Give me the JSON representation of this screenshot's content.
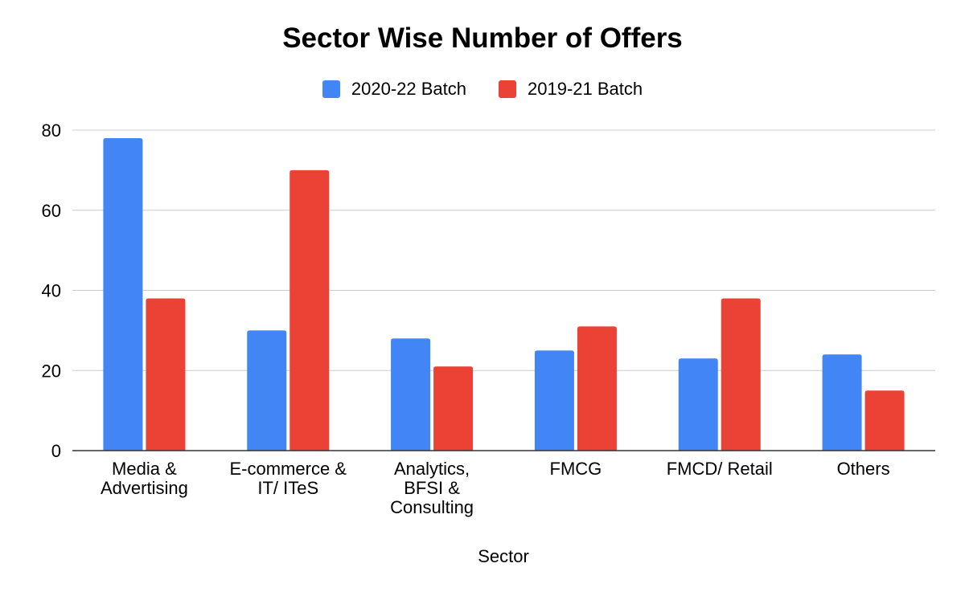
{
  "chart_data": {
    "type": "bar",
    "title": "Sector Wise Number of Offers",
    "xlabel": "Sector",
    "ylabel": "",
    "ylim": [
      0,
      80
    ],
    "yticks": [
      0,
      20,
      40,
      60,
      80
    ],
    "grid": true,
    "legend_position": "top",
    "categories": [
      [
        "Media &",
        "Advertising"
      ],
      [
        "E-commerce &",
        "IT/ ITeS"
      ],
      [
        "Analytics,",
        "BFSI &",
        "Consulting"
      ],
      [
        "FMCG"
      ],
      [
        "FMCD/ Retail"
      ],
      [
        "Others"
      ]
    ],
    "series": [
      {
        "name": "2020-22 Batch",
        "color": "#4285f4",
        "values": [
          78,
          30,
          28,
          25,
          23,
          24
        ]
      },
      {
        "name": "2019-21 Batch",
        "color": "#ea4335",
        "values": [
          38,
          70,
          21,
          31,
          38,
          15
        ]
      }
    ]
  }
}
